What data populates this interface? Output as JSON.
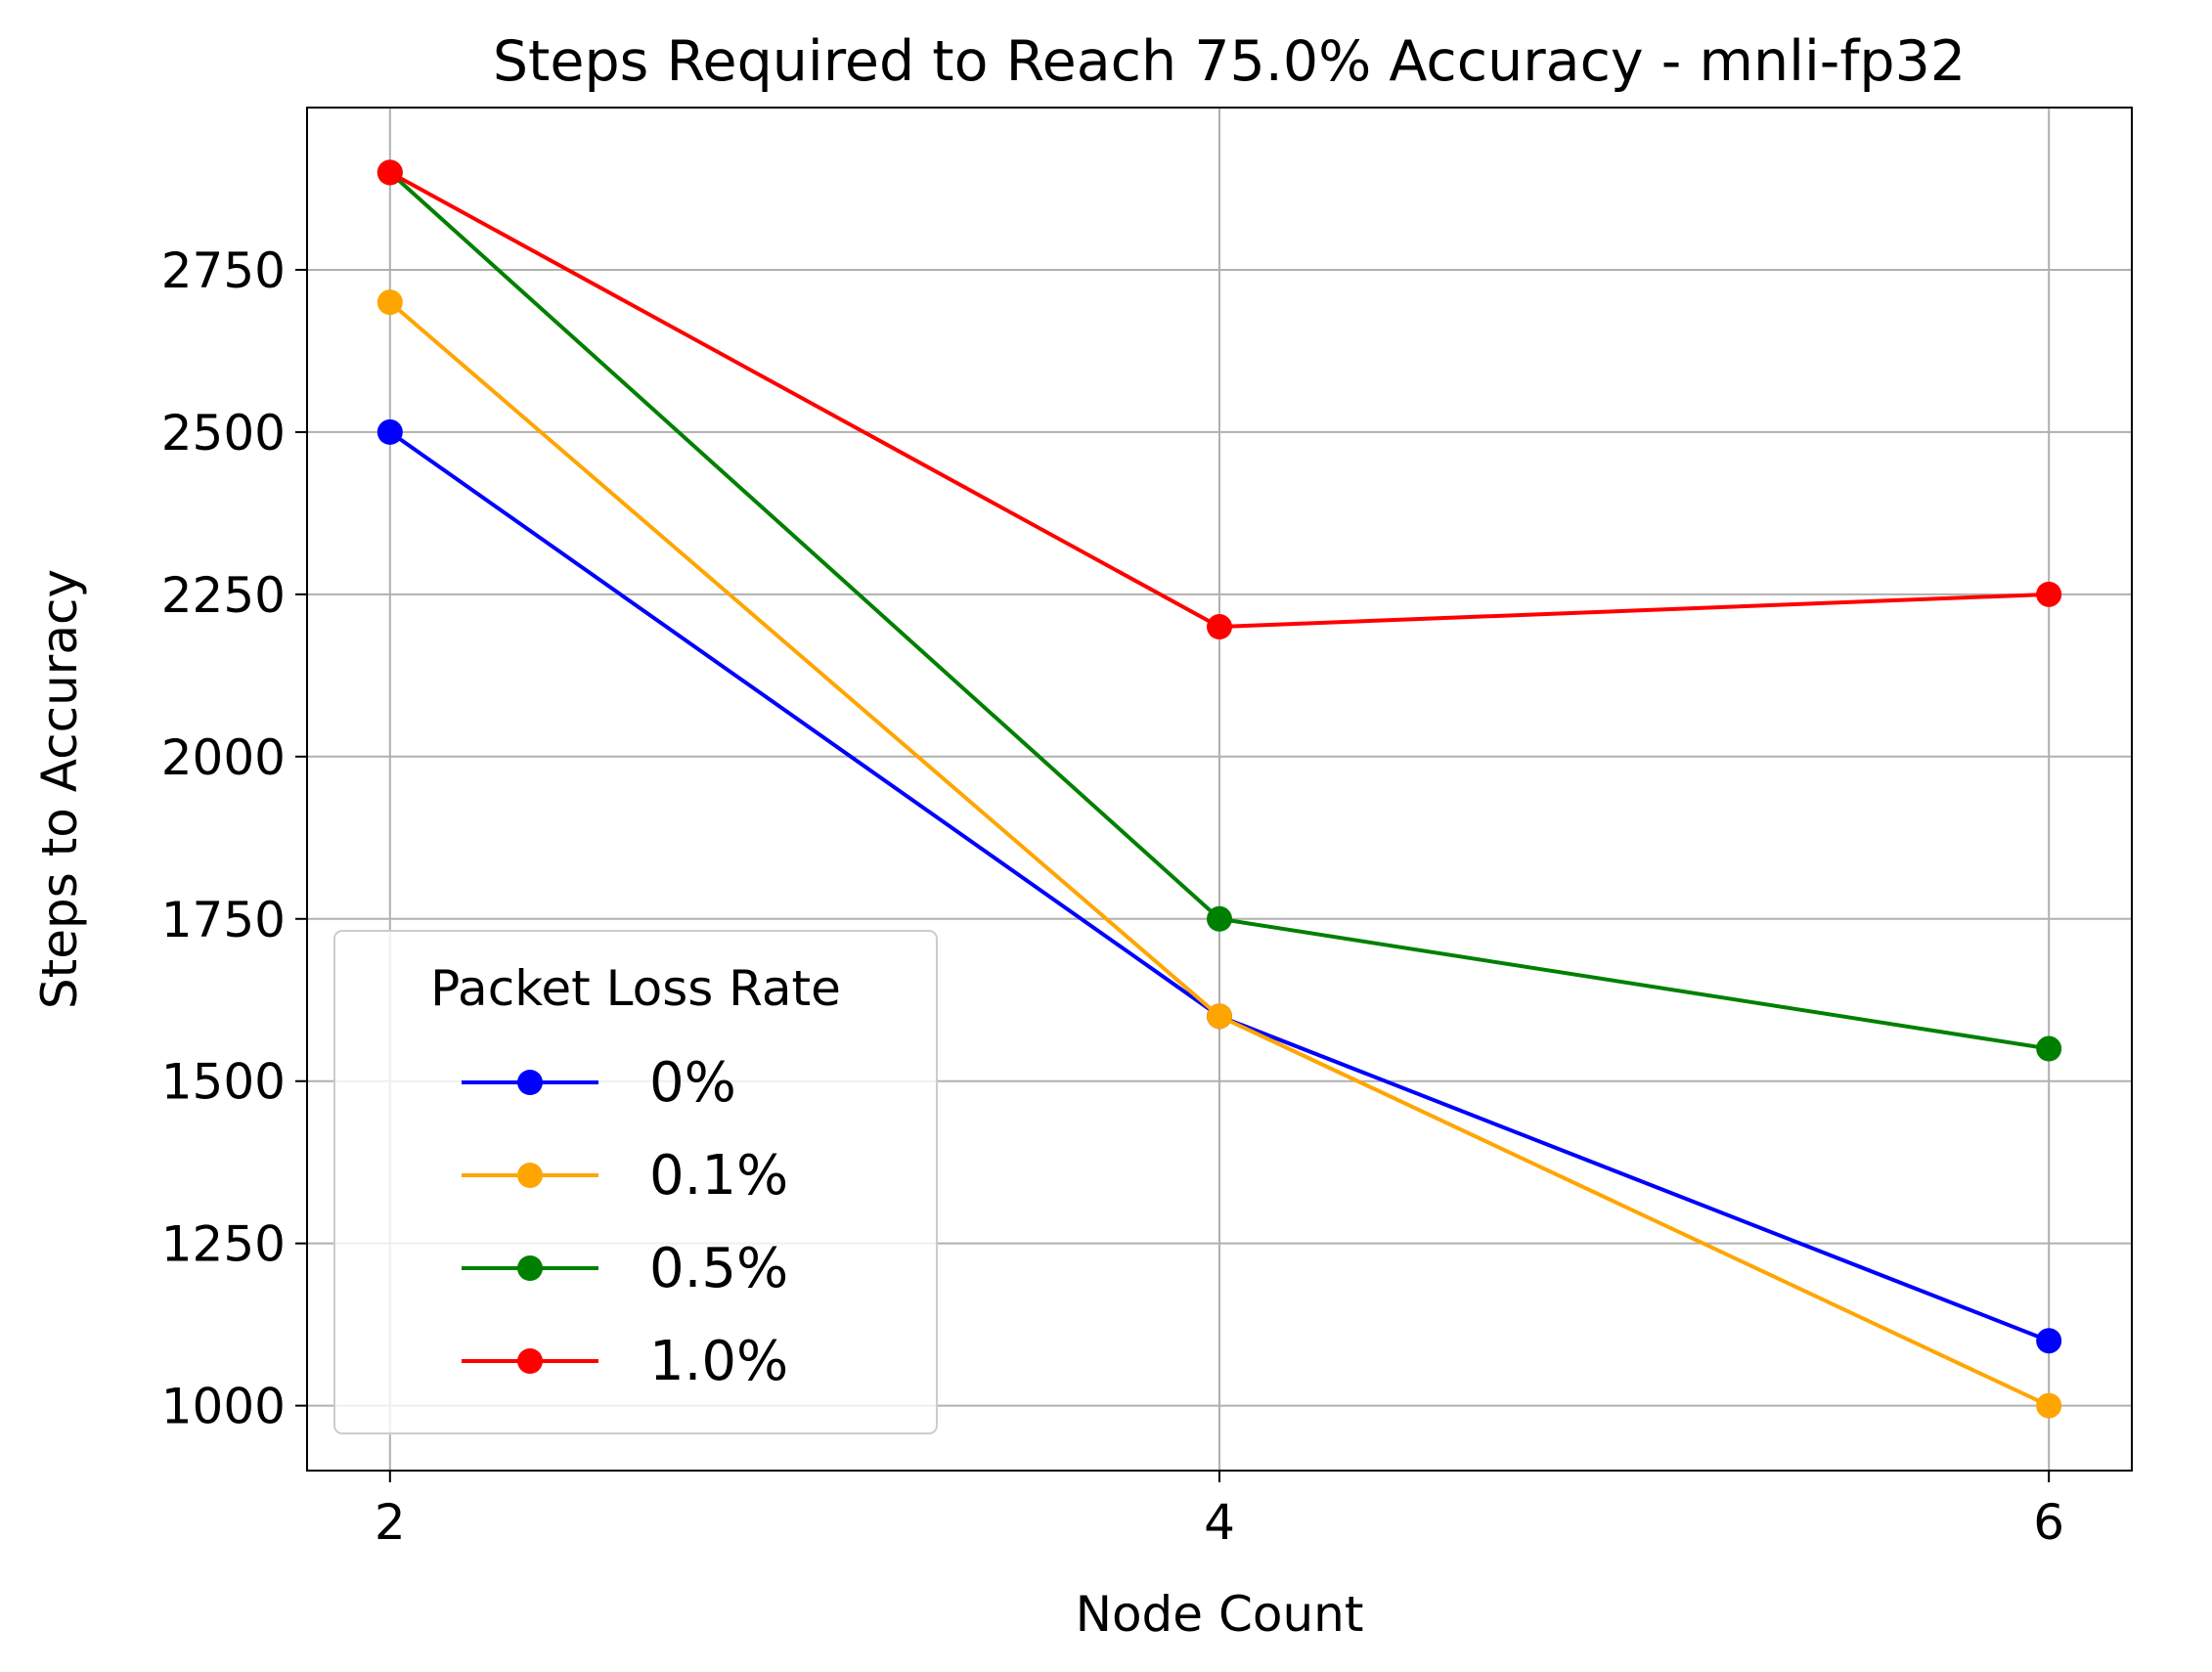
{
  "chart_data": {
    "type": "line",
    "title": "Steps Required to Reach 75.0% Accuracy - mnli-fp32",
    "xlabel": "Node Count",
    "ylabel": "Steps to Accuracy",
    "x": [
      2,
      4,
      6
    ],
    "x_ticks": [
      "2",
      "4",
      "6"
    ],
    "xlim": [
      1.8,
      6.2
    ],
    "ylim": [
      900,
      3000
    ],
    "y_ticks": [
      1000,
      1250,
      1500,
      1750,
      2000,
      2250,
      2500,
      2750
    ],
    "y_tick_labels": [
      "1000",
      "1250",
      "1500",
      "1750",
      "2000",
      "2250",
      "2500",
      "2750"
    ],
    "grid": true,
    "legend": {
      "title": "Packet Loss Rate",
      "placement": "lower-left"
    },
    "series": [
      {
        "name": "0%",
        "color": "#0000ff",
        "values": [
          2500,
          1600,
          1100
        ]
      },
      {
        "name": "0.1%",
        "color": "#ffa500",
        "values": [
          2700,
          1600,
          1000
        ]
      },
      {
        "name": "0.5%",
        "color": "#008000",
        "values": [
          2900,
          1750,
          1550
        ]
      },
      {
        "name": "1.0%",
        "color": "#ff0000",
        "values": [
          2900,
          2200,
          2250
        ]
      }
    ]
  }
}
